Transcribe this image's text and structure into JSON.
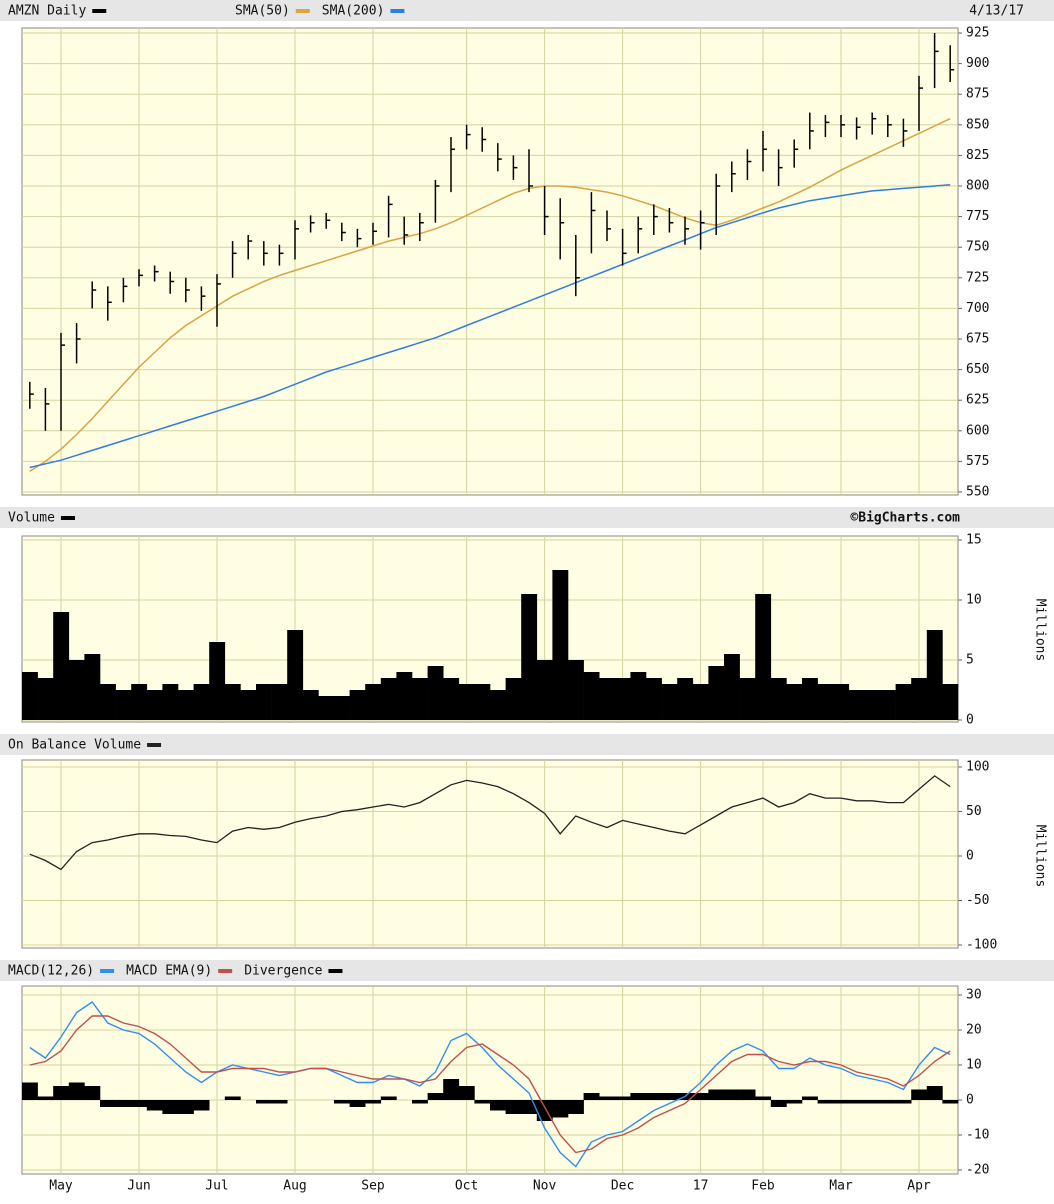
{
  "chart_data": [
    {
      "type": "ohlc",
      "name": "AMZN Daily",
      "color": "#000000",
      "date": "4/13/17",
      "high": [
        640,
        635,
        680,
        688,
        722,
        718,
        725,
        732,
        735,
        730,
        725,
        718,
        728,
        755,
        760,
        755,
        752,
        772,
        776,
        778,
        770,
        765,
        770,
        792,
        775,
        778,
        805,
        840,
        850,
        848,
        835,
        825,
        830,
        800,
        790,
        760,
        795,
        780,
        765,
        775,
        785,
        782,
        775,
        780,
        810,
        820,
        830,
        845,
        830,
        838,
        860,
        858,
        858,
        856,
        860,
        858,
        855,
        890,
        925,
        915
      ],
      "low": [
        618,
        600,
        600,
        655,
        700,
        690,
        705,
        718,
        722,
        712,
        705,
        698,
        685,
        725,
        740,
        735,
        735,
        740,
        762,
        765,
        755,
        750,
        752,
        758,
        752,
        755,
        770,
        795,
        830,
        828,
        812,
        805,
        795,
        760,
        740,
        710,
        745,
        755,
        735,
        745,
        760,
        762,
        752,
        748,
        760,
        795,
        805,
        812,
        800,
        815,
        830,
        840,
        840,
        838,
        842,
        840,
        832,
        845,
        880,
        885
      ],
      "close": [
        630,
        622,
        670,
        675,
        715,
        705,
        718,
        727,
        730,
        722,
        715,
        710,
        720,
        745,
        755,
        745,
        745,
        765,
        770,
        772,
        762,
        757,
        763,
        785,
        760,
        770,
        800,
        830,
        842,
        838,
        822,
        815,
        800,
        775,
        770,
        725,
        780,
        765,
        745,
        765,
        775,
        770,
        765,
        770,
        800,
        810,
        820,
        830,
        815,
        830,
        845,
        852,
        850,
        848,
        855,
        850,
        845,
        880,
        910,
        895
      ],
      "series": [
        {
          "name": "SMA(50)",
          "color": "#d9a441",
          "values": [
            567,
            575,
            585,
            597,
            610,
            624,
            638,
            652,
            664,
            676,
            686,
            694,
            702,
            710,
            716,
            722,
            727,
            731,
            735,
            739,
            743,
            747,
            751,
            755,
            758,
            761,
            765,
            770,
            776,
            782,
            788,
            794,
            798,
            800,
            800,
            799,
            797,
            795,
            792,
            788,
            784,
            779,
            774,
            770,
            768,
            772,
            777,
            782,
            787,
            793,
            799,
            806,
            813,
            819,
            825,
            831,
            837,
            843,
            849,
            855
          ]
        },
        {
          "name": "SMA(200)",
          "color": "#2f7de1",
          "values": [
            570,
            573,
            576,
            580,
            584,
            588,
            592,
            596,
            600,
            604,
            608,
            612,
            616,
            620,
            624,
            628,
            633,
            638,
            643,
            648,
            652,
            656,
            660,
            664,
            668,
            672,
            676,
            681,
            686,
            691,
            696,
            701,
            706,
            711,
            716,
            721,
            726,
            731,
            736,
            741,
            746,
            751,
            756,
            761,
            766,
            770,
            774,
            778,
            782,
            785,
            788,
            790,
            792,
            794,
            796,
            797,
            798,
            799,
            800,
            801
          ]
        }
      ],
      "ylim": [
        550,
        925
      ],
      "yticks": [
        925,
        900,
        875,
        850,
        825,
        800,
        775,
        750,
        725,
        700,
        675,
        650,
        625,
        600,
        575,
        550
      ],
      "grid": true
    },
    {
      "type": "area",
      "name": "Volume",
      "color": "#000000",
      "credit": "©BigCharts.com",
      "unit_label": "Millions",
      "values": [
        4,
        3.5,
        9,
        5,
        5.5,
        3,
        2.5,
        3,
        2.5,
        3,
        2.5,
        3,
        6.5,
        3,
        2.5,
        3,
        3,
        7.5,
        2.5,
        2,
        2,
        2.5,
        3,
        3.5,
        4,
        3.5,
        4.5,
        3.5,
        3,
        3,
        2.5,
        3.5,
        10.5,
        5,
        12.5,
        5,
        4,
        3.5,
        3.5,
        4,
        3.5,
        3,
        3.5,
        3,
        4.5,
        5.5,
        3.5,
        10.5,
        3.5,
        3,
        3.5,
        3,
        3,
        2.5,
        2.5,
        2.5,
        3,
        3.5,
        7.5,
        3
      ],
      "ylim": [
        0,
        15
      ],
      "yticks": [
        15,
        10,
        5,
        0
      ],
      "grid": true
    },
    {
      "type": "line",
      "name": "On Balance Volume",
      "color": "#222222",
      "unit_label": "Millions",
      "values": [
        2,
        -5,
        -15,
        5,
        15,
        18,
        22,
        25,
        25,
        23,
        22,
        18,
        15,
        28,
        32,
        30,
        32,
        38,
        42,
        45,
        50,
        52,
        55,
        58,
        55,
        60,
        70,
        80,
        85,
        82,
        78,
        70,
        60,
        48,
        25,
        45,
        38,
        32,
        40,
        36,
        32,
        28,
        25,
        35,
        45,
        55,
        60,
        65,
        55,
        60,
        70,
        65,
        65,
        62,
        62,
        60,
        60,
        75,
        90,
        78
      ],
      "ylim": [
        -100,
        100
      ],
      "yticks": [
        100,
        50,
        0,
        -50,
        -100
      ],
      "grid": true
    },
    {
      "type": "macd",
      "categories": [
        null,
        null,
        "May",
        null,
        null,
        null,
        null,
        "Jun",
        null,
        null,
        null,
        null,
        "Jul",
        null,
        null,
        null,
        null,
        "Aug",
        null,
        null,
        null,
        null,
        "Sep",
        null,
        null,
        null,
        null,
        null,
        "Oct",
        null,
        null,
        null,
        null,
        "Nov",
        null,
        null,
        null,
        null,
        "Dec",
        null,
        null,
        null,
        null,
        "17",
        null,
        null,
        null,
        "Feb",
        null,
        null,
        null,
        null,
        "Mar",
        null,
        null,
        null,
        null,
        "Apr",
        null,
        null
      ],
      "series": [
        {
          "name": "MACD(12,26)",
          "color": "#2f8ff0",
          "type": "line",
          "values": [
            15,
            12,
            18,
            25,
            28,
            22,
            20,
            19,
            16,
            12,
            8,
            5,
            8,
            10,
            9,
            8,
            7,
            8,
            9,
            9,
            7,
            5,
            5,
            7,
            6,
            4,
            8,
            17,
            19,
            15,
            10,
            6,
            2,
            -8,
            -15,
            -19,
            -12,
            -10,
            -9,
            -6,
            -3,
            -1,
            1,
            5,
            10,
            14,
            16,
            14,
            9,
            9,
            12,
            10,
            9,
            7,
            6,
            5,
            3,
            10,
            15,
            13
          ]
        },
        {
          "name": "MACD EMA(9)",
          "color": "#c0504d",
          "type": "line",
          "values": [
            10,
            11,
            14,
            20,
            24,
            24,
            22,
            21,
            19,
            16,
            12,
            8,
            8,
            9,
            9,
            9,
            8,
            8,
            9,
            9,
            8,
            7,
            6,
            6,
            6,
            5,
            6,
            11,
            15,
            16,
            13,
            10,
            6,
            -2,
            -10,
            -15,
            -14,
            -11,
            -10,
            -8,
            -5,
            -3,
            -1,
            3,
            7,
            11,
            13,
            13,
            11,
            10,
            11,
            11,
            10,
            8,
            7,
            6,
            4,
            7,
            11,
            14
          ]
        },
        {
          "name": "Divergence",
          "color": "#000000",
          "type": "bar",
          "values": [
            5,
            1,
            4,
            5,
            4,
            -2,
            -2,
            -2,
            -3,
            -4,
            -4,
            -3,
            0,
            1,
            0,
            -1,
            -1,
            0,
            0,
            0,
            -1,
            -2,
            -1,
            1,
            0,
            -1,
            2,
            6,
            4,
            -1,
            -3,
            -4,
            -4,
            -6,
            -5,
            -4,
            2,
            1,
            1,
            2,
            2,
            2,
            2,
            2,
            3,
            3,
            3,
            1,
            -2,
            -1,
            1,
            -1,
            -1,
            -1,
            -1,
            -1,
            -1,
            3,
            4,
            -1
          ]
        }
      ],
      "ylim": [
        -20,
        30
      ],
      "yticks": [
        30,
        20,
        10,
        0,
        -10,
        -20
      ],
      "grid": true
    }
  ]
}
